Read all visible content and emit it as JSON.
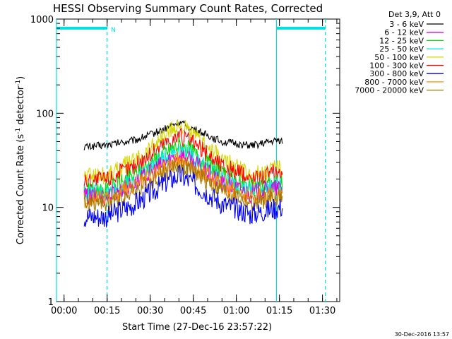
{
  "chart_data": {
    "type": "line",
    "title": "HESSI Observing Summary Count Rates, Corrected",
    "xlabel": "Start Time (27-Dec-16 23:57:22)",
    "ylabel_main": "Corrected Count Rate (s",
    "ylabel_sup1": "-1",
    "ylabel_mid": " detector",
    "ylabel_sup2": "-1",
    "ylabel_end": ")",
    "y_scale": "log",
    "ylim": [
      1,
      1000
    ],
    "xlim": [
      "23:57:22",
      "01:36:00"
    ],
    "x_ticks": [
      "00:00",
      "00:15",
      "00:30",
      "00:45",
      "01:00",
      "01:15",
      "01:30"
    ],
    "y_ticks": [
      "1",
      "10",
      "100",
      "1000"
    ],
    "legend_title": "Det 3,9, Att 0",
    "legend_position": "right, outside plot",
    "footer_date": "30-Dec-2016 13:57",
    "annotation_N": "N",
    "night_bars": [
      {
        "label": "N",
        "from": "23:57:22",
        "to": "00:15:00",
        "level": 800
      },
      {
        "label": "",
        "from": "01:14:00",
        "to": "01:31:00",
        "level": 800
      }
    ],
    "dashed_markers": [
      "00:15:00",
      "01:31:00"
    ],
    "solid_markers": [
      "23:57:22",
      "01:14:00"
    ],
    "series": [
      {
        "name": "3 - 6 keV",
        "color": "#000000",
        "x": [
          "00:07",
          "00:15",
          "00:25",
          "00:35",
          "00:40",
          "00:45",
          "00:55",
          "01:05",
          "01:15",
          "01:16"
        ],
        "values": [
          44,
          46,
          52,
          68,
          80,
          68,
          50,
          45,
          52,
          50
        ]
      },
      {
        "name": "6 - 12 keV",
        "color": "#e000e0",
        "x": [
          "00:07",
          "00:15",
          "00:25",
          "00:35",
          "00:40",
          "00:45",
          "00:55",
          "01:05",
          "01:15",
          "01:16"
        ],
        "values": [
          13,
          13,
          18,
          30,
          37,
          30,
          18,
          14,
          16,
          16
        ]
      },
      {
        "name": "12 - 25 keV",
        "color": "#00dd00",
        "x": [
          "00:07",
          "00:15",
          "00:25",
          "00:35",
          "00:40",
          "00:45",
          "00:55",
          "01:05",
          "01:15",
          "01:16"
        ],
        "values": [
          15,
          15,
          22,
          38,
          46,
          38,
          22,
          16,
          18,
          17
        ]
      },
      {
        "name": "25 - 50 keV",
        "color": "#00e8e0",
        "x": [
          "00:07",
          "00:15",
          "00:25",
          "00:35",
          "00:40",
          "00:45",
          "00:55",
          "01:05",
          "01:15",
          "01:16"
        ],
        "values": [
          14,
          14,
          20,
          34,
          42,
          34,
          20,
          15,
          17,
          16
        ]
      },
      {
        "name": "50 - 100 keV",
        "color": "#d8d800",
        "x": [
          "00:07",
          "00:15",
          "00:25",
          "00:35",
          "00:40",
          "00:45",
          "00:55",
          "01:05",
          "01:15",
          "01:16"
        ],
        "values": [
          22,
          22,
          32,
          58,
          75,
          58,
          32,
          22,
          26,
          25
        ]
      },
      {
        "name": "100 - 300 keV",
        "color": "#ff0000",
        "x": [
          "00:07",
          "00:15",
          "00:25",
          "00:35",
          "00:40",
          "00:45",
          "00:55",
          "01:05",
          "01:15",
          "01:16"
        ],
        "values": [
          19,
          20,
          28,
          48,
          58,
          48,
          28,
          20,
          24,
          23
        ]
      },
      {
        "name": "300 - 800 keV",
        "color": "#0000ff",
        "x": [
          "00:07",
          "00:15",
          "00:25",
          "00:35",
          "00:40",
          "00:45",
          "00:55",
          "01:05",
          "01:15",
          "01:16"
        ],
        "values": [
          8,
          8,
          11,
          18,
          22,
          18,
          11,
          8.5,
          10,
          10
        ]
      },
      {
        "name": "800 - 7000 keV",
        "color": "#ff8800",
        "x": [
          "00:07",
          "00:15",
          "00:25",
          "00:35",
          "00:40",
          "00:45",
          "00:55",
          "01:05",
          "01:15",
          "01:16"
        ],
        "values": [
          12,
          12,
          17,
          27,
          32,
          27,
          17,
          12.5,
          14,
          14
        ]
      },
      {
        "name": "7000 - 20000 keV",
        "color": "#a07800",
        "x": [
          "00:07",
          "00:15",
          "00:25",
          "00:35",
          "00:40",
          "00:45",
          "00:55",
          "01:05",
          "01:15",
          "01:16"
        ],
        "values": [
          11,
          11,
          15,
          24,
          28,
          24,
          15,
          11,
          13,
          13
        ]
      }
    ]
  }
}
